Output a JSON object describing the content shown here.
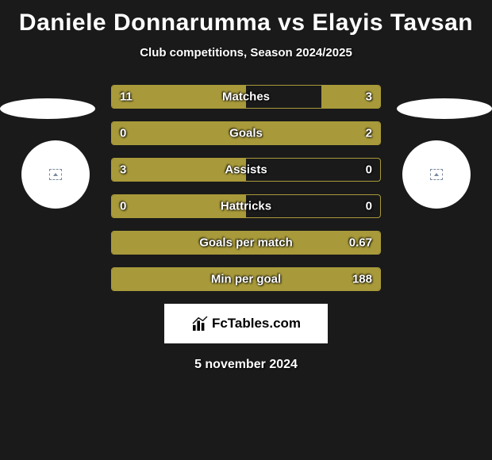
{
  "header": {
    "title": "Daniele Donnarumma vs Elayis Tavsan",
    "subtitle": "Club competitions, Season 2024/2025"
  },
  "bars": [
    {
      "label": "Matches",
      "left_val": "11",
      "right_val": "3",
      "left_pct": 50,
      "right_pct": 22
    },
    {
      "label": "Goals",
      "left_val": "0",
      "right_val": "2",
      "left_pct": 0,
      "right_pct": 100
    },
    {
      "label": "Assists",
      "left_val": "3",
      "right_val": "0",
      "left_pct": 50,
      "right_pct": 0
    },
    {
      "label": "Hattricks",
      "left_val": "0",
      "right_val": "0",
      "left_pct": 50,
      "right_pct": 0
    },
    {
      "label": "Goals per match",
      "left_val": "",
      "right_val": "0.67",
      "left_pct": 100,
      "right_pct": 0
    },
    {
      "label": "Min per goal",
      "left_val": "",
      "right_val": "188",
      "left_pct": 100,
      "right_pct": 0
    }
  ],
  "colors": {
    "bar_fill": "#a89a3a",
    "bar_border": "#a89a3a",
    "background": "#1a1a1a",
    "text": "#ffffff"
  },
  "logo": {
    "text": "FcTables.com"
  },
  "footer": {
    "date": "5 november 2024"
  }
}
